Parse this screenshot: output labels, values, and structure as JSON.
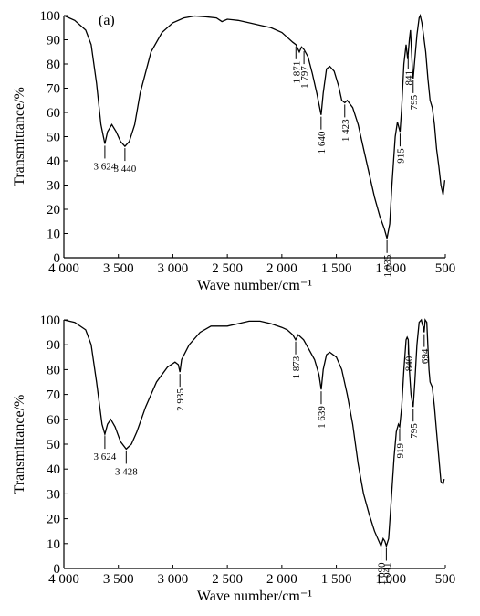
{
  "chart_data": [
    {
      "type": "line",
      "panel_label": "(a)",
      "xlabel": "Wave number/cm⁻¹",
      "ylabel": "Transmittance/%",
      "color": "#000000",
      "xlim": [
        4000,
        500
      ],
      "ylim": [
        0,
        100
      ],
      "xticks": [
        {
          "value": 4000,
          "label": "4 000"
        },
        {
          "value": 3500,
          "label": "3 500"
        },
        {
          "value": 3000,
          "label": "3 000"
        },
        {
          "value": 2500,
          "label": "2 500"
        },
        {
          "value": 2000,
          "label": "2 000"
        },
        {
          "value": 1500,
          "label": "1 500"
        },
        {
          "value": 1000,
          "label": "1 000"
        },
        500
      ],
      "yticks": [
        0,
        10,
        20,
        30,
        40,
        50,
        60,
        70,
        80,
        90,
        100
      ],
      "x": [
        4000,
        3900,
        3800,
        3750,
        3700,
        3660,
        3624,
        3600,
        3560,
        3520,
        3480,
        3440,
        3400,
        3350,
        3300,
        3200,
        3100,
        3000,
        2900,
        2800,
        2700,
        2600,
        2550,
        2500,
        2400,
        2300,
        2200,
        2100,
        2000,
        1950,
        1900,
        1871,
        1840,
        1820,
        1797,
        1760,
        1720,
        1680,
        1640,
        1620,
        1590,
        1560,
        1520,
        1480,
        1450,
        1423,
        1400,
        1350,
        1300,
        1250,
        1200,
        1150,
        1100,
        1060,
        1035,
        1010,
        990,
        960,
        940,
        915,
        900,
        880,
        860,
        845,
        830,
        820,
        810,
        800,
        795,
        780,
        760,
        740,
        730,
        715,
        700,
        680,
        660,
        640,
        620,
        600,
        580,
        560,
        540,
        520,
        510,
        505
      ],
      "values": [
        100,
        98,
        94,
        88,
        72,
        55,
        47,
        52,
        55,
        52,
        48,
        46,
        48,
        55,
        68,
        85,
        93,
        97,
        99,
        99.8,
        99.5,
        99,
        97.5,
        98.5,
        98,
        97,
        96,
        95,
        93,
        91,
        89,
        88,
        85,
        87,
        86,
        83,
        76,
        68,
        59,
        68,
        78,
        79,
        77,
        71,
        65,
        64,
        65,
        62,
        55,
        45,
        35,
        25,
        17,
        12,
        8,
        14,
        30,
        50,
        56,
        52,
        62,
        80,
        88,
        82,
        90,
        94,
        85,
        76,
        74,
        82,
        92,
        99,
        100,
        97,
        92,
        85,
        74,
        65,
        62,
        55,
        45,
        38,
        30,
        26,
        30,
        32
      ],
      "annotations": [
        {
          "label": "3 624",
          "x": 3624
        },
        {
          "label": "3 440",
          "x": 3440
        },
        {
          "label": "1 871",
          "x": 1871
        },
        {
          "label": "1 797",
          "x": 1797
        },
        {
          "label": "1 640",
          "x": 1640
        },
        {
          "label": "1 423",
          "x": 1423
        },
        {
          "label": "1 035",
          "x": 1035
        },
        {
          "label": "915",
          "x": 915
        },
        {
          "label": "841",
          "x": 841
        },
        {
          "label": "795",
          "x": 795
        }
      ]
    },
    {
      "type": "line",
      "xlabel": "Wave number/cm⁻¹",
      "ylabel": "Transmittance/%",
      "color": "#000000",
      "xlim": [
        4000,
        500
      ],
      "ylim": [
        0,
        100
      ],
      "xticks": [
        {
          "value": 4000,
          "label": "4 000"
        },
        {
          "value": 3500,
          "label": "3 500"
        },
        {
          "value": 3000,
          "label": "3 000"
        },
        {
          "value": 2500,
          "label": "2 500"
        },
        {
          "value": 2000,
          "label": "2 000"
        },
        {
          "value": 1500,
          "label": "1 500"
        },
        {
          "value": 1000,
          "label": "1 000"
        },
        500
      ],
      "yticks": [
        0,
        10,
        20,
        30,
        40,
        50,
        60,
        70,
        80,
        90,
        100
      ],
      "x": [
        4000,
        3900,
        3800,
        3750,
        3700,
        3650,
        3624,
        3600,
        3570,
        3530,
        3480,
        3428,
        3380,
        3330,
        3250,
        3150,
        3050,
        2980,
        2950,
        2935,
        2920,
        2850,
        2750,
        2650,
        2500,
        2400,
        2300,
        2200,
        2100,
        2000,
        1950,
        1900,
        1873,
        1850,
        1800,
        1750,
        1700,
        1660,
        1639,
        1620,
        1590,
        1560,
        1500,
        1450,
        1400,
        1350,
        1300,
        1250,
        1200,
        1150,
        1090,
        1070,
        1055,
        1041,
        1020,
        1000,
        970,
        950,
        930,
        919,
        900,
        880,
        860,
        850,
        840,
        830,
        815,
        800,
        795,
        780,
        760,
        740,
        720,
        710,
        700,
        694,
        685,
        670,
        650,
        640,
        620,
        600,
        580,
        560,
        540,
        520,
        510
      ],
      "values": [
        100,
        99,
        96,
        90,
        75,
        58,
        54,
        58,
        60,
        57,
        51,
        48,
        50,
        55,
        65,
        75,
        81,
        83,
        82,
        79,
        84,
        90,
        95,
        97.5,
        97.5,
        98.5,
        99.5,
        99.5,
        98.5,
        97,
        96,
        94,
        92,
        94,
        92,
        88,
        84,
        78,
        72,
        80,
        86,
        87,
        85,
        80,
        70,
        58,
        42,
        30,
        22,
        15,
        9,
        12,
        11,
        9,
        12,
        25,
        45,
        55,
        58,
        57,
        65,
        80,
        92,
        93,
        92,
        80,
        70,
        66,
        65,
        75,
        90,
        99,
        100,
        98,
        97,
        95,
        100,
        99,
        80,
        75,
        73,
        65,
        55,
        45,
        35,
        34,
        36
      ],
      "annotations": [
        {
          "label": "3 624",
          "x": 3624
        },
        {
          "label": "3 428",
          "x": 3428
        },
        {
          "label": "2 935",
          "x": 2935
        },
        {
          "label": "1 873",
          "x": 1873
        },
        {
          "label": "1 639",
          "x": 1639
        },
        {
          "label": "1 090",
          "x": 1090
        },
        {
          "label": "1 041",
          "x": 1041
        },
        {
          "label": "919",
          "x": 919
        },
        {
          "label": "840",
          "x": 840
        },
        {
          "label": "795",
          "x": 795
        },
        {
          "label": "694",
          "x": 694
        }
      ]
    }
  ]
}
